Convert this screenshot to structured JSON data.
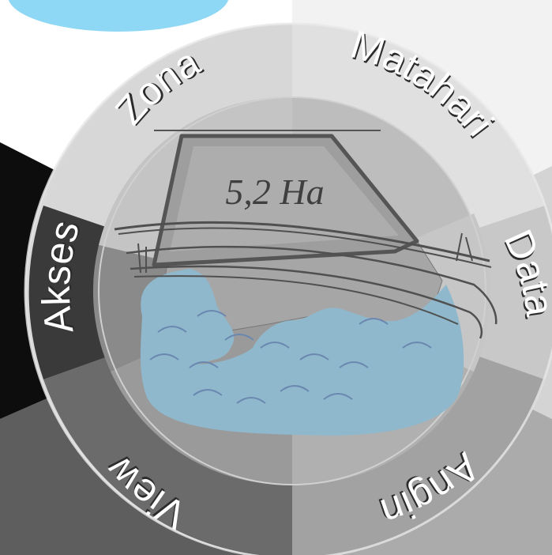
{
  "diagram": {
    "segments": [
      {
        "id": "zona",
        "label": "Zona",
        "color": "#dcdcdc"
      },
      {
        "id": "matahari",
        "label": "Matahari",
        "color": "#f0f0f0"
      },
      {
        "id": "data",
        "label": "Data",
        "color": "#c9c9c9"
      },
      {
        "id": "angin",
        "label": "Angin",
        "color": "#a9a9a9"
      },
      {
        "id": "view",
        "label": "View",
        "color": "#616161"
      },
      {
        "id": "akses",
        "label": "Akses",
        "color": "#111111"
      }
    ],
    "site_area_label": "5,2 Ha",
    "colors": {
      "water": "#8fb8cc",
      "land": "#a6a6a6",
      "road": "#555555",
      "sky": "#8fd8f5"
    }
  }
}
